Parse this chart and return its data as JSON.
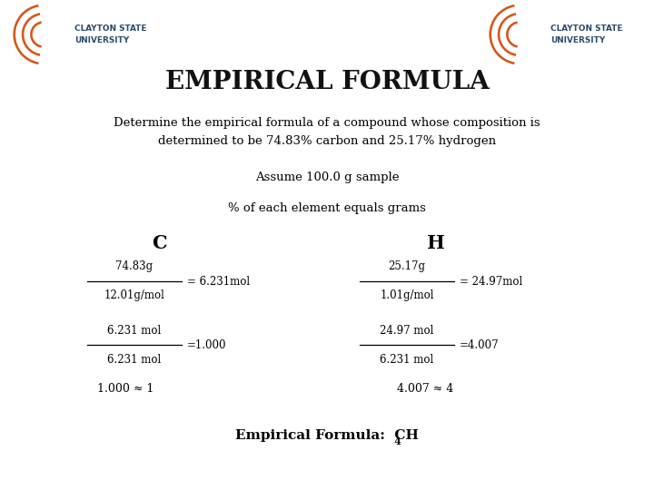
{
  "title": "EMPIRICAL FORMULA",
  "subtitle_line1": "Determine the empirical formula of a compound whose composition is",
  "subtitle_line2": "determined to be 74.83% carbon and 25.17% hydrogen",
  "assume_text": "Assume 100.0 g sample",
  "percent_text": "% of each element equals grams",
  "C_label": "C",
  "H_label": "H",
  "C_frac_num": "74.83g",
  "C_frac_den": "12.01g/mol",
  "C_frac_result": "= 6.231mol",
  "H_frac_num": "25.17g",
  "H_frac_den": "1.01g/mol",
  "H_frac_result": "= 24.97mol",
  "C_ratio_num": "6.231 mol",
  "C_ratio_den": "6.231 mol",
  "C_ratio_result": "=1.000",
  "H_ratio_num": "24.97 mol",
  "H_ratio_den": "6.231 mol",
  "H_ratio_result": "=4.007",
  "C_approx": "1.000 ≈ 1",
  "H_approx": "4.007 ≈ 4",
  "empirical_label": "Empirical Formula:  CH",
  "empirical_subscript": "4",
  "bg_color": "#ffffff",
  "text_color": "#000000",
  "title_color": "#111111",
  "logo_arc_color": "#d4571a",
  "logo_text_color": "#2b4a6b"
}
